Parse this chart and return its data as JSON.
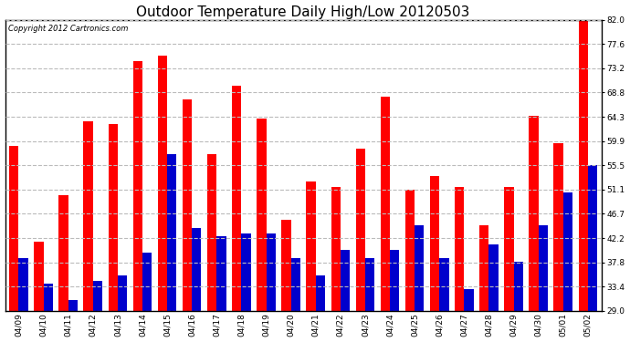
{
  "title": "Outdoor Temperature Daily High/Low 20120503",
  "copyright_text": "Copyright 2012 Cartronics.com",
  "dates": [
    "04/09",
    "04/10",
    "04/11",
    "04/12",
    "04/13",
    "04/14",
    "04/15",
    "04/16",
    "04/17",
    "04/18",
    "04/19",
    "04/20",
    "04/21",
    "04/22",
    "04/23",
    "04/24",
    "04/25",
    "04/26",
    "04/27",
    "04/28",
    "04/29",
    "04/30",
    "05/01",
    "05/02"
  ],
  "highs": [
    59.0,
    41.5,
    50.0,
    63.5,
    63.0,
    74.5,
    75.5,
    67.5,
    57.5,
    70.0,
    64.0,
    45.5,
    52.5,
    51.5,
    58.5,
    68.0,
    51.0,
    53.5,
    51.5,
    44.5,
    51.5,
    64.5,
    59.5,
    82.0
  ],
  "lows": [
    38.5,
    34.0,
    31.0,
    34.5,
    35.5,
    39.5,
    57.5,
    44.0,
    42.5,
    43.0,
    43.0,
    38.5,
    35.5,
    40.0,
    38.5,
    40.0,
    44.5,
    38.5,
    33.0,
    41.0,
    38.0,
    44.5,
    50.5,
    55.5
  ],
  "high_color": "#ff0000",
  "low_color": "#0000cc",
  "background_color": "#ffffff",
  "grid_color": "#bbbbbb",
  "ymin": 29.0,
  "ymax": 82.0,
  "yticks": [
    29.0,
    33.4,
    37.8,
    42.2,
    46.7,
    51.1,
    55.5,
    59.9,
    64.3,
    68.8,
    73.2,
    77.6,
    82.0
  ],
  "bar_width": 0.38,
  "title_fontsize": 11,
  "tick_fontsize": 6.5,
  "copyright_fontsize": 6
}
